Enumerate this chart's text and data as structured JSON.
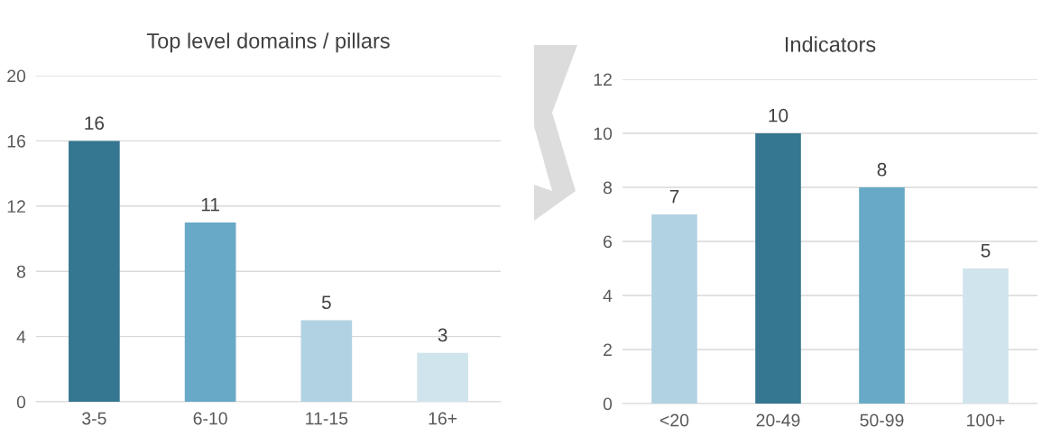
{
  "chart_data": [
    {
      "type": "bar",
      "title": "Top level domains / pillars",
      "categories": [
        "3-5",
        "6-10",
        "11-15",
        "16+"
      ],
      "values": [
        16,
        11,
        5,
        3
      ],
      "colors": [
        "#357690",
        "#67a9c6",
        "#b1d2e2",
        "#d0e4ed"
      ],
      "ylim": [
        0,
        20
      ],
      "yticks": [
        0,
        4,
        8,
        12,
        16,
        20
      ],
      "grid": "y",
      "data_labels": true
    },
    {
      "type": "bar",
      "title": "Indicators",
      "categories": [
        "<20",
        "20-49",
        "50-99",
        "100+"
      ],
      "values": [
        7,
        10,
        8,
        5
      ],
      "colors": [
        "#b1d2e2",
        "#357690",
        "#67a9c6",
        "#d0e4ed"
      ],
      "ylim": [
        0,
        12
      ],
      "yticks": [
        0,
        2,
        4,
        6,
        8,
        10,
        12
      ],
      "grid": "y",
      "data_labels": true
    }
  ]
}
